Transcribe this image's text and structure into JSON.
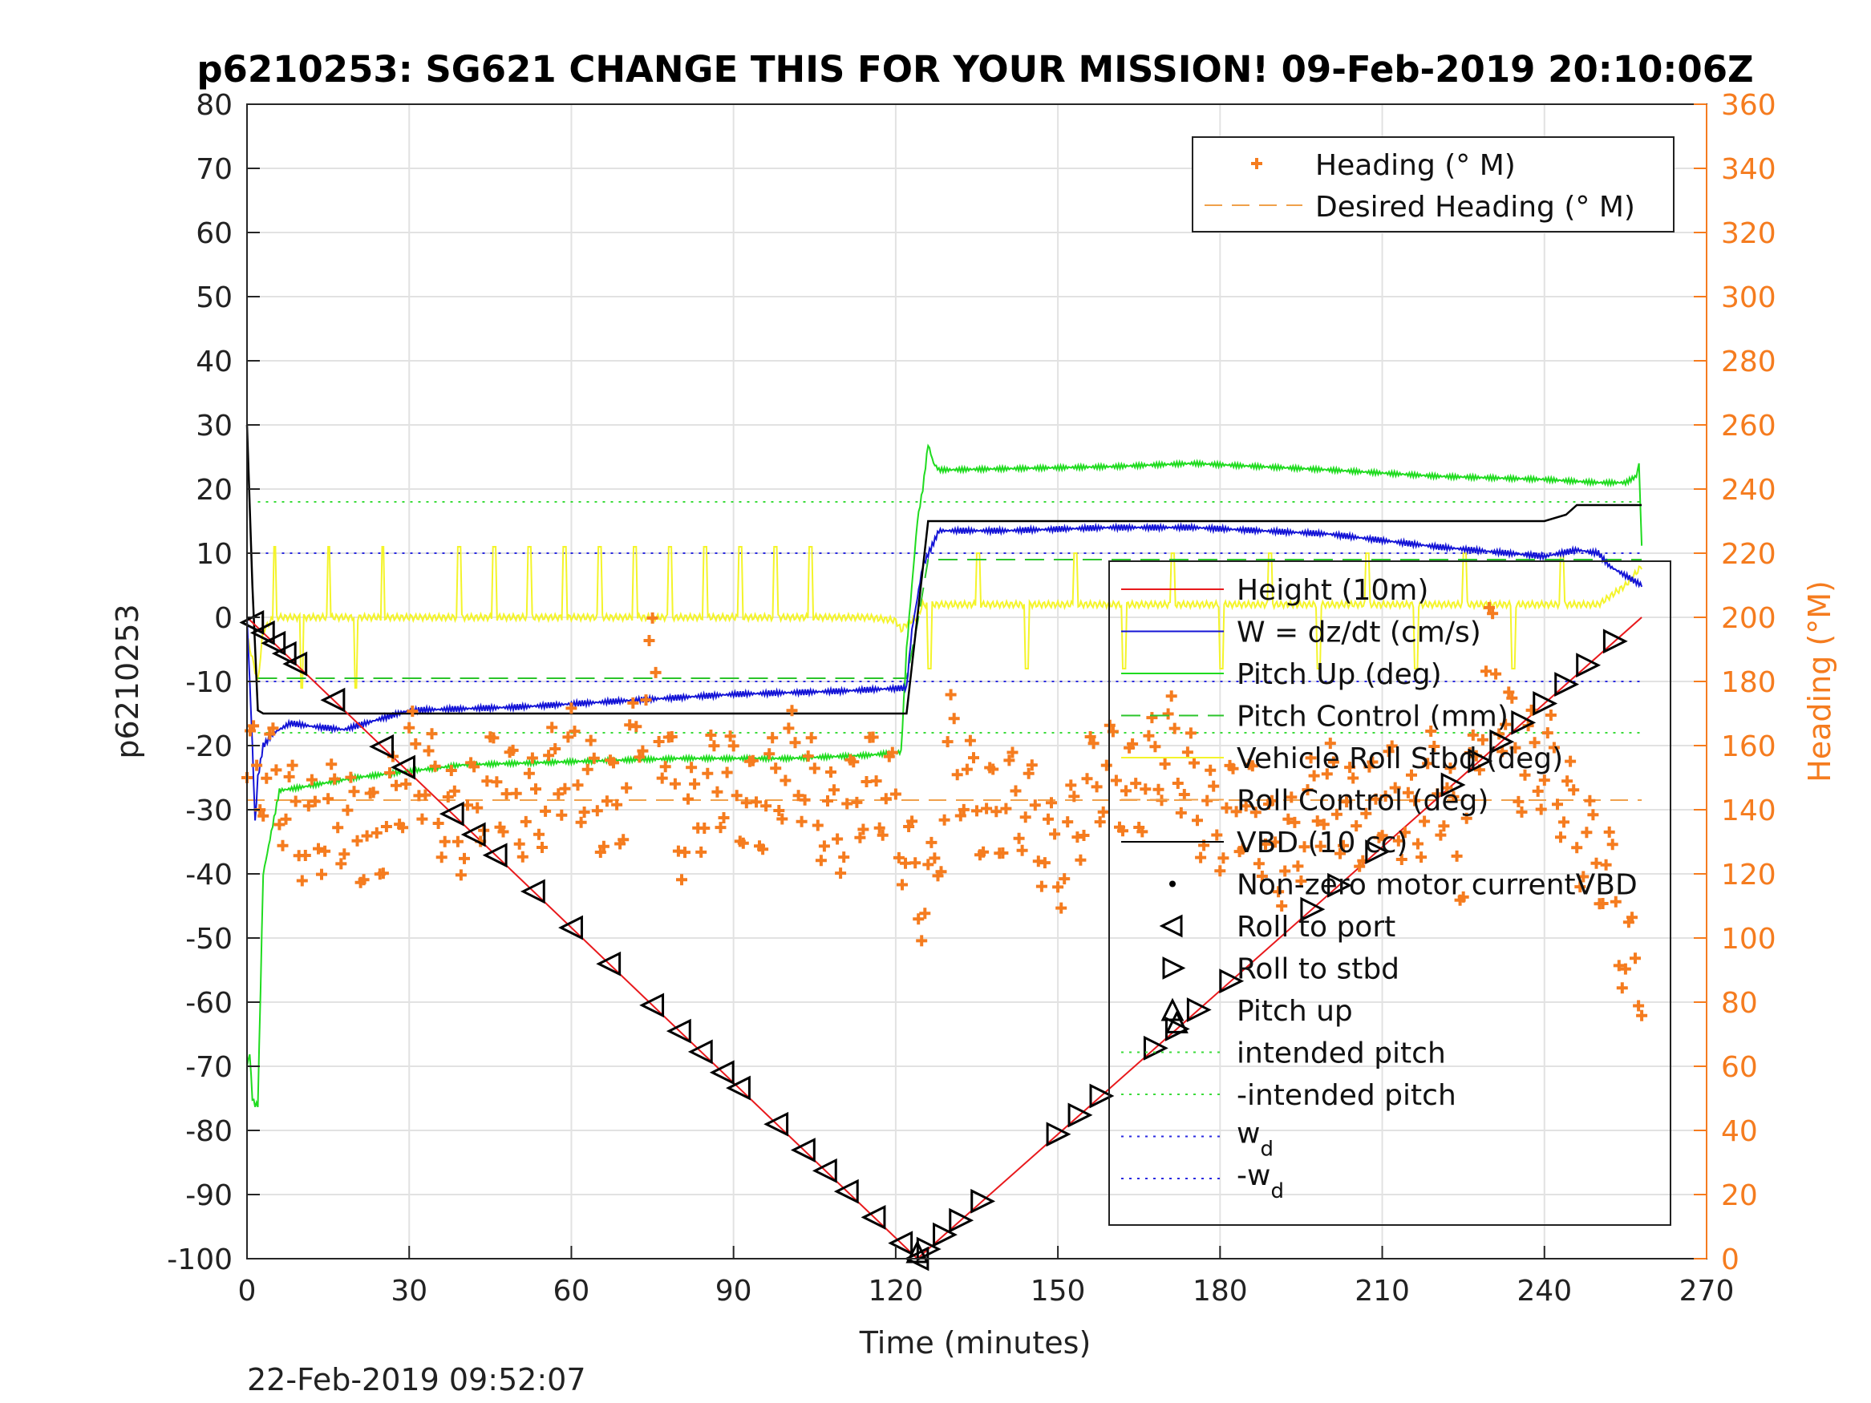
{
  "chart_data": {
    "type": "line",
    "title": "p6210253: SG621 CHANGE THIS FOR YOUR MISSION! 09-Feb-2019 20:10:06Z",
    "xlabel": "Time (minutes)",
    "ylabel": "p6210253",
    "ylabel_right": "Heading (°M)",
    "footer": "22-Feb-2019 09:52:07",
    "xlim": [
      0,
      270
    ],
    "ylim": [
      -100,
      80
    ],
    "ylim_right": [
      0,
      360
    ],
    "xticks": [
      "0",
      "30",
      "60",
      "90",
      "120",
      "150",
      "180",
      "210",
      "240",
      "270"
    ],
    "yticks": [
      "-100",
      "-90",
      "-80",
      "-70",
      "-60",
      "-50",
      "-40",
      "-30",
      "-20",
      "-10",
      "0",
      "10",
      "20",
      "30",
      "40",
      "50",
      "60",
      "70",
      "80"
    ],
    "yticks_right": [
      "0",
      "20",
      "40",
      "60",
      "80",
      "100",
      "120",
      "140",
      "160",
      "180",
      "200",
      "220",
      "240",
      "260",
      "280",
      "300",
      "320",
      "340",
      "360"
    ],
    "grid": true,
    "legend_top": {
      "placement": "top-right",
      "entries": [
        "Heading (° M)",
        "Desired Heading (° M)"
      ]
    },
    "legend_main": {
      "placement": "right",
      "entries": [
        "Height (10m)",
        "W = dz/dt (cm/s)",
        "Pitch Up (deg)",
        "Pitch Control (mm)",
        "Vehicle Roll Stbd (deg)",
        "Roll Control (deg)",
        "VBD (10 cc)",
        "Non-zero motor currentVBD",
        "Roll to port",
        "Roll to stbd",
        "Pitch up",
        "intended pitch",
        "-intended pitch"
      ],
      "wd_base": "w",
      "wd_sub": "d",
      "wd_neg": "-w"
    },
    "colors": {
      "height": "#e8191c",
      "w": "#1414d6",
      "pitch": "#1fdb1f",
      "pitch_control": "#2bc42b",
      "roll": "#f4f42a",
      "roll_control": "#f0a04a",
      "vbd": "#000000",
      "heading": "#f57c1f",
      "intended": "#3adb3a",
      "wd": "#2a2ae0"
    },
    "series": [
      {
        "name": "Height (10m)",
        "x": [
          0,
          124,
          258
        ],
        "y": [
          0,
          -100,
          0
        ]
      },
      {
        "name": "W = dz/dt (cm/s)",
        "x": [
          0,
          1,
          1.5,
          2,
          3,
          5,
          8,
          12,
          18,
          30,
          50,
          70,
          90,
          110,
          122,
          123,
          125,
          128,
          140,
          160,
          175,
          200,
          220,
          240,
          246,
          250,
          252,
          256,
          258
        ],
        "y": [
          0,
          -20,
          -32,
          -25,
          -20,
          -18,
          -16.5,
          -17,
          -17.5,
          -14.5,
          -14,
          -13,
          -12,
          -11.5,
          -11,
          -2,
          8,
          13.5,
          13.5,
          14,
          14,
          13,
          11,
          9.5,
          10.5,
          10,
          8,
          6,
          5
        ]
      },
      {
        "name": "Pitch Up (deg)",
        "x": [
          0,
          0.5,
          1,
          1.5,
          2,
          3,
          6,
          10,
          20,
          40,
          60,
          80,
          100,
          115,
          121,
          122,
          123,
          124,
          125,
          126,
          127,
          128,
          130,
          160,
          175,
          200,
          220,
          240,
          250,
          255,
          257,
          257.5,
          258
        ],
        "y": [
          -70,
          -68,
          -75,
          -76,
          -76,
          -40,
          -27,
          -26.5,
          -25,
          -23,
          -22.5,
          -22,
          -22,
          -21.5,
          -21,
          -5,
          5,
          15,
          20,
          27,
          24,
          23,
          23,
          23.5,
          24,
          23,
          22,
          21.5,
          21,
          21,
          22,
          24,
          11
        ]
      },
      {
        "name": "Pitch Control (mm)",
        "x": [
          2,
          122,
          124,
          126,
          258
        ],
        "y": [
          -9.5,
          -9.5,
          -1,
          9,
          9
        ]
      },
      {
        "name": "Vehicle Roll Stbd (deg)",
        "x": [
          0,
          2,
          3,
          5,
          8,
          15,
          25,
          35,
          45,
          55,
          65,
          75,
          85,
          95,
          105,
          110,
          115,
          120,
          121,
          122,
          124,
          125,
          130,
          140,
          150,
          160,
          170,
          180,
          190,
          200,
          210,
          220,
          230,
          240,
          250,
          255,
          258
        ],
        "y": [
          -3,
          -10,
          -2,
          0,
          0,
          0,
          0,
          0,
          0,
          0,
          0,
          0,
          0,
          0,
          0,
          0,
          0,
          -0.5,
          -2,
          -1,
          0,
          2,
          2,
          2,
          2,
          2,
          2,
          2,
          2,
          2,
          2,
          2,
          2,
          2,
          2,
          5,
          8
        ]
      },
      {
        "name": "VBD (10 cc)",
        "x": [
          0,
          1,
          2,
          3,
          10,
          60,
          100,
          122,
          126,
          130,
          180,
          240,
          244,
          246,
          258
        ],
        "y": [
          30,
          5,
          -14.5,
          -15,
          -15,
          -15,
          -15,
          -15,
          15,
          15,
          15,
          15,
          16,
          17.5,
          17.5
        ]
      },
      {
        "name": "Heading (° M)",
        "x": [
          0,
          10,
          20,
          30,
          40,
          50,
          60,
          70,
          75,
          80,
          90,
          100,
          110,
          120,
          124,
          127,
          130,
          140,
          150,
          160,
          170,
          180,
          190,
          200,
          210,
          215,
          220,
          225,
          230,
          235,
          240,
          245,
          250,
          253,
          255,
          258
        ],
        "y": [
          150,
          140,
          130,
          150,
          140,
          145,
          150,
          145,
          180,
          140,
          145,
          150,
          140,
          145,
          120,
          110,
          155,
          140,
          130,
          150,
          155,
          140,
          130,
          140,
          145,
          130,
          160,
          120,
          190,
          160,
          150,
          140,
          130,
          110,
          85,
          90
        ]
      },
      {
        "name": "Desired Heading (° M)",
        "x": [
          0,
          258
        ],
        "y": [
          143,
          143
        ]
      }
    ],
    "intended_pitch": 18,
    "neg_intended_pitch": -18,
    "w_d": 10,
    "neg_w_d": -10,
    "roll_to_port_x": [
      1,
      3,
      5,
      7,
      9,
      16,
      25,
      29,
      38,
      42,
      46,
      53,
      60,
      67,
      75,
      80,
      84,
      88,
      91,
      98,
      103,
      107,
      111,
      116,
      121,
      124
    ],
    "roll_to_stbd_x": [
      126,
      129,
      132,
      136,
      150,
      154,
      158,
      168,
      172,
      176,
      182,
      197,
      202,
      209,
      223,
      228,
      232,
      236,
      240,
      244,
      248,
      253
    ],
    "pitch_up_x": [
      124,
      172
    ]
  }
}
